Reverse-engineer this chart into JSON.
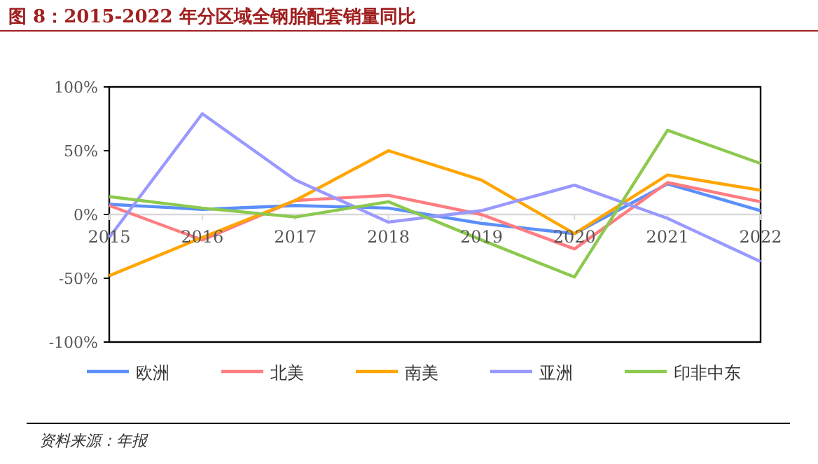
{
  "chart_data": {
    "type": "line",
    "title": "图 8：2015-2022 年分区域全钢胎配套销量同比",
    "categories": [
      "2015",
      "2016",
      "2017",
      "2018",
      "2019",
      "2020",
      "2021",
      "2022"
    ],
    "series": [
      {
        "name": "欧洲",
        "color": "#5b8ff9",
        "values": [
          8,
          4,
          7,
          5,
          -7,
          -15,
          24,
          3
        ]
      },
      {
        "name": "北美",
        "color": "#ff7c80",
        "values": [
          7,
          -20,
          11,
          15,
          0,
          -27,
          25,
          10
        ]
      },
      {
        "name": "南美",
        "color": "#ffa500",
        "values": [
          -48,
          -18,
          11,
          50,
          27,
          -15,
          31,
          19
        ]
      },
      {
        "name": "亚洲",
        "color": "#9999ff",
        "values": [
          -18,
          79,
          27,
          -6,
          3,
          23,
          -3,
          -37
        ]
      },
      {
        "name": "印非中东",
        "color": "#8cc94e",
        "values": [
          14,
          5,
          -2,
          10,
          -20,
          -49,
          66,
          40
        ]
      }
    ],
    "ylim": [
      -100,
      100
    ],
    "yticks": [
      {
        "value": -100,
        "label": "-100%"
      },
      {
        "value": -50,
        "label": "-50%"
      },
      {
        "value": 0,
        "label": "0%"
      },
      {
        "value": 50,
        "label": "50%"
      },
      {
        "value": 100,
        "label": "100%"
      }
    ],
    "legend": "bottom",
    "annotations": [
      "资料来源：年报"
    ]
  }
}
